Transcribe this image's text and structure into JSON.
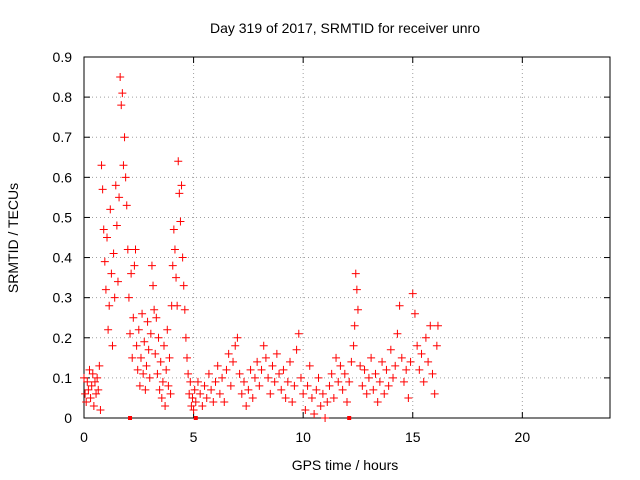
{
  "chart_data": {
    "type": "scatter",
    "title": "Day 319 of 2017, SRMTID for receiver unro",
    "xlabel": "GPS time / hours",
    "ylabel": "SRMTID / TECUs",
    "xlim": [
      0,
      24
    ],
    "ylim": [
      0,
      0.9
    ],
    "x_ticks": [
      0,
      5,
      10,
      15,
      20
    ],
    "y_ticks": [
      0,
      0.1,
      0.2,
      0.3,
      0.4,
      0.5,
      0.6,
      0.7,
      0.8,
      0.9
    ],
    "grid": true,
    "marker": "+",
    "color": "#ff0000",
    "points": [
      [
        0.0,
        0.1
      ],
      [
        0.05,
        0.06
      ],
      [
        0.1,
        0.04
      ],
      [
        0.15,
        0.09
      ],
      [
        0.2,
        0.07
      ],
      [
        0.25,
        0.12
      ],
      [
        0.3,
        0.05
      ],
      [
        0.35,
        0.08
      ],
      [
        0.4,
        0.11
      ],
      [
        0.45,
        0.03
      ],
      [
        0.5,
        0.09
      ],
      [
        0.55,
        0.06
      ],
      [
        0.6,
        0.1
      ],
      [
        0.65,
        0.07
      ],
      [
        0.7,
        0.13
      ],
      [
        0.75,
        0.02
      ],
      [
        0.8,
        0.63
      ],
      [
        0.85,
        0.57
      ],
      [
        0.9,
        0.47
      ],
      [
        0.95,
        0.39
      ],
      [
        1.0,
        0.32
      ],
      [
        1.05,
        0.45
      ],
      [
        1.1,
        0.22
      ],
      [
        1.15,
        0.28
      ],
      [
        1.2,
        0.52
      ],
      [
        1.25,
        0.36
      ],
      [
        1.3,
        0.18
      ],
      [
        1.35,
        0.41
      ],
      [
        1.4,
        0.3
      ],
      [
        1.45,
        0.58
      ],
      [
        1.5,
        0.48
      ],
      [
        1.55,
        0.34
      ],
      [
        1.6,
        0.55
      ],
      [
        1.65,
        0.85
      ],
      [
        1.7,
        0.78
      ],
      [
        1.75,
        0.81
      ],
      [
        1.8,
        0.63
      ],
      [
        1.85,
        0.7
      ],
      [
        1.9,
        0.6
      ],
      [
        1.95,
        0.53
      ],
      [
        2.0,
        0.42
      ],
      [
        2.05,
        0.3
      ],
      [
        2.1,
        0.21
      ],
      [
        2.15,
        0.36
      ],
      [
        2.2,
        0.15
      ],
      [
        2.25,
        0.25
      ],
      [
        2.3,
        0.38
      ],
      [
        2.35,
        0.42
      ],
      [
        2.4,
        0.18
      ],
      [
        2.45,
        0.12
      ],
      [
        2.5,
        0.22
      ],
      [
        2.55,
        0.08
      ],
      [
        2.6,
        0.15
      ],
      [
        2.65,
        0.26
      ],
      [
        2.7,
        0.11
      ],
      [
        2.75,
        0.19
      ],
      [
        2.8,
        0.07
      ],
      [
        2.85,
        0.13
      ],
      [
        2.9,
        0.24
      ],
      [
        2.95,
        0.17
      ],
      [
        3.0,
        0.1
      ],
      [
        3.05,
        0.21
      ],
      [
        3.1,
        0.38
      ],
      [
        3.15,
        0.33
      ],
      [
        3.2,
        0.27
      ],
      [
        3.25,
        0.16
      ],
      [
        3.3,
        0.25
      ],
      [
        3.35,
        0.11
      ],
      [
        3.4,
        0.2
      ],
      [
        3.45,
        0.07
      ],
      [
        3.5,
        0.14
      ],
      [
        3.55,
        0.05
      ],
      [
        3.6,
        0.09
      ],
      [
        3.65,
        0.18
      ],
      [
        3.7,
        0.03
      ],
      [
        3.75,
        0.12
      ],
      [
        3.8,
        0.22
      ],
      [
        3.85,
        0.08
      ],
      [
        3.9,
        0.15
      ],
      [
        3.95,
        0.06
      ],
      [
        4.0,
        0.28
      ],
      [
        4.05,
        0.38
      ],
      [
        4.1,
        0.47
      ],
      [
        4.15,
        0.42
      ],
      [
        4.2,
        0.35
      ],
      [
        4.25,
        0.28
      ],
      [
        4.3,
        0.64
      ],
      [
        4.35,
        0.56
      ],
      [
        4.4,
        0.49
      ],
      [
        4.45,
        0.58
      ],
      [
        4.5,
        0.4
      ],
      [
        4.55,
        0.33
      ],
      [
        4.6,
        0.27
      ],
      [
        4.65,
        0.2
      ],
      [
        4.7,
        0.15
      ],
      [
        4.75,
        0.11
      ],
      [
        4.8,
        0.06
      ],
      [
        4.85,
        0.09
      ],
      [
        4.9,
        0.03
      ],
      [
        4.95,
        0.05
      ],
      [
        5.0,
        0.02
      ],
      [
        5.05,
        0.07
      ],
      [
        5.1,
        0.04
      ],
      [
        5.2,
        0.09
      ],
      [
        5.3,
        0.06
      ],
      [
        5.4,
        0.03
      ],
      [
        5.5,
        0.08
      ],
      [
        5.6,
        0.05
      ],
      [
        5.7,
        0.11
      ],
      [
        5.8,
        0.07
      ],
      [
        5.9,
        0.04
      ],
      [
        6.0,
        0.09
      ],
      [
        6.1,
        0.13
      ],
      [
        6.2,
        0.06
      ],
      [
        6.3,
        0.1
      ],
      [
        6.4,
        0.04
      ],
      [
        6.5,
        0.12
      ],
      [
        6.6,
        0.16
      ],
      [
        6.7,
        0.08
      ],
      [
        6.8,
        0.14
      ],
      [
        6.9,
        0.18
      ],
      [
        7.0,
        0.2
      ],
      [
        7.1,
        0.11
      ],
      [
        7.2,
        0.06
      ],
      [
        7.3,
        0.09
      ],
      [
        7.4,
        0.03
      ],
      [
        7.5,
        0.07
      ],
      [
        7.6,
        0.12
      ],
      [
        7.7,
        0.05
      ],
      [
        7.8,
        0.1
      ],
      [
        7.9,
        0.14
      ],
      [
        8.0,
        0.08
      ],
      [
        8.1,
        0.12
      ],
      [
        8.2,
        0.18
      ],
      [
        8.3,
        0.15
      ],
      [
        8.4,
        0.1
      ],
      [
        8.5,
        0.06
      ],
      [
        8.6,
        0.13
      ],
      [
        8.7,
        0.09
      ],
      [
        8.8,
        0.16
      ],
      [
        8.9,
        0.11
      ],
      [
        9.0,
        0.07
      ],
      [
        9.1,
        0.12
      ],
      [
        9.2,
        0.05
      ],
      [
        9.3,
        0.09
      ],
      [
        9.4,
        0.14
      ],
      [
        9.5,
        0.04
      ],
      [
        9.6,
        0.08
      ],
      [
        9.7,
        0.17
      ],
      [
        9.8,
        0.21
      ],
      [
        9.9,
        0.1
      ],
      [
        10.0,
        0.06
      ],
      [
        10.1,
        0.02
      ],
      [
        10.2,
        0.08
      ],
      [
        10.3,
        0.13
      ],
      [
        10.4,
        0.05
      ],
      [
        10.5,
        0.01
      ],
      [
        10.6,
        0.07
      ],
      [
        10.7,
        0.1
      ],
      [
        10.8,
        0.03
      ],
      [
        10.9,
        0.06
      ],
      [
        11.0,
        0.0
      ],
      [
        11.1,
        0.04
      ],
      [
        11.2,
        0.08
      ],
      [
        11.3,
        0.11
      ],
      [
        11.4,
        0.05
      ],
      [
        11.5,
        0.15
      ],
      [
        11.6,
        0.09
      ],
      [
        11.7,
        0.13
      ],
      [
        11.8,
        0.07
      ],
      [
        11.9,
        0.11
      ],
      [
        12.0,
        0.04
      ],
      [
        12.1,
        0.09
      ],
      [
        12.2,
        0.14
      ],
      [
        12.3,
        0.18
      ],
      [
        12.35,
        0.23
      ],
      [
        12.4,
        0.36
      ],
      [
        12.45,
        0.32
      ],
      [
        12.5,
        0.27
      ],
      [
        12.6,
        0.13
      ],
      [
        12.7,
        0.08
      ],
      [
        12.8,
        0.12
      ],
      [
        12.9,
        0.06
      ],
      [
        13.0,
        0.1
      ],
      [
        13.1,
        0.15
      ],
      [
        13.2,
        0.07
      ],
      [
        13.3,
        0.11
      ],
      [
        13.4,
        0.04
      ],
      [
        13.5,
        0.09
      ],
      [
        13.6,
        0.14
      ],
      [
        13.7,
        0.06
      ],
      [
        13.8,
        0.12
      ],
      [
        13.9,
        0.08
      ],
      [
        14.0,
        0.17
      ],
      [
        14.1,
        0.1
      ],
      [
        14.2,
        0.13
      ],
      [
        14.3,
        0.21
      ],
      [
        14.4,
        0.28
      ],
      [
        14.5,
        0.15
      ],
      [
        14.6,
        0.09
      ],
      [
        14.7,
        0.12
      ],
      [
        14.8,
        0.05
      ],
      [
        14.9,
        0.14
      ],
      [
        15.0,
        0.31
      ],
      [
        15.1,
        0.26
      ],
      [
        15.2,
        0.18
      ],
      [
        15.3,
        0.12
      ],
      [
        15.4,
        0.16
      ],
      [
        15.5,
        0.09
      ],
      [
        15.6,
        0.2
      ],
      [
        15.7,
        0.14
      ],
      [
        15.8,
        0.23
      ],
      [
        15.9,
        0.11
      ],
      [
        16.0,
        0.06
      ],
      [
        16.1,
        0.18
      ],
      [
        16.15,
        0.23
      ]
    ],
    "baseline_markers": [
      2.1,
      5.1,
      12.1
    ]
  }
}
